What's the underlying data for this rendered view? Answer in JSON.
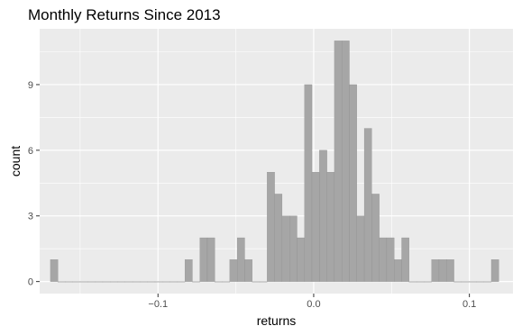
{
  "chart_data": {
    "type": "bar",
    "title": "Monthly Returns Since 2013",
    "xlabel": "returns",
    "ylabel": "count",
    "xlim": [
      -0.176,
      0.128
    ],
    "ylim": [
      -0.55,
      11.55
    ],
    "x_ticks": [
      {
        "value": -0.1,
        "label": "−0.1"
      },
      {
        "value": 0.0,
        "label": "0.0"
      },
      {
        "value": 0.1,
        "label": "0.1"
      }
    ],
    "y_ticks": [
      {
        "value": 0,
        "label": "0"
      },
      {
        "value": 3,
        "label": "3"
      },
      {
        "value": 6,
        "label": "6"
      },
      {
        "value": 9,
        "label": "9"
      }
    ],
    "bin_width": 0.0048,
    "bins": [
      {
        "x": -0.1667,
        "count": 1
      },
      {
        "x": -0.1619,
        "count": 0
      },
      {
        "x": -0.1571,
        "count": 0
      },
      {
        "x": -0.1523,
        "count": 0
      },
      {
        "x": -0.1475,
        "count": 0
      },
      {
        "x": -0.1427,
        "count": 0
      },
      {
        "x": -0.1379,
        "count": 0
      },
      {
        "x": -0.1331,
        "count": 0
      },
      {
        "x": -0.1283,
        "count": 0
      },
      {
        "x": -0.1235,
        "count": 0
      },
      {
        "x": -0.1187,
        "count": 0
      },
      {
        "x": -0.1139,
        "count": 0
      },
      {
        "x": -0.1091,
        "count": 0
      },
      {
        "x": -0.1043,
        "count": 0
      },
      {
        "x": -0.0995,
        "count": 0
      },
      {
        "x": -0.0947,
        "count": 0
      },
      {
        "x": -0.0899,
        "count": 0
      },
      {
        "x": -0.0851,
        "count": 0
      },
      {
        "x": -0.0803,
        "count": 1
      },
      {
        "x": -0.0755,
        "count": 0
      },
      {
        "x": -0.0707,
        "count": 2
      },
      {
        "x": -0.0659,
        "count": 2
      },
      {
        "x": -0.0611,
        "count": 0
      },
      {
        "x": -0.0563,
        "count": 0
      },
      {
        "x": -0.0515,
        "count": 1
      },
      {
        "x": -0.0467,
        "count": 2
      },
      {
        "x": -0.0419,
        "count": 1
      },
      {
        "x": -0.0371,
        "count": 0
      },
      {
        "x": -0.0323,
        "count": 0
      },
      {
        "x": -0.0275,
        "count": 5
      },
      {
        "x": -0.0227,
        "count": 4
      },
      {
        "x": -0.0179,
        "count": 3
      },
      {
        "x": -0.0131,
        "count": 3
      },
      {
        "x": -0.0083,
        "count": 2
      },
      {
        "x": -0.0035,
        "count": 9
      },
      {
        "x": 0.0013,
        "count": 5
      },
      {
        "x": 0.0061,
        "count": 6
      },
      {
        "x": 0.0109,
        "count": 5
      },
      {
        "x": 0.0157,
        "count": 11
      },
      {
        "x": 0.0205,
        "count": 11
      },
      {
        "x": 0.0253,
        "count": 9
      },
      {
        "x": 0.0301,
        "count": 3
      },
      {
        "x": 0.0349,
        "count": 7
      },
      {
        "x": 0.0397,
        "count": 4
      },
      {
        "x": 0.0445,
        "count": 2
      },
      {
        "x": 0.0493,
        "count": 2
      },
      {
        "x": 0.0541,
        "count": 1
      },
      {
        "x": 0.0589,
        "count": 2
      },
      {
        "x": 0.0637,
        "count": 0
      },
      {
        "x": 0.0685,
        "count": 0
      },
      {
        "x": 0.0733,
        "count": 0
      },
      {
        "x": 0.0781,
        "count": 1
      },
      {
        "x": 0.0829,
        "count": 1
      },
      {
        "x": 0.0877,
        "count": 1
      },
      {
        "x": 0.0925,
        "count": 0
      },
      {
        "x": 0.0973,
        "count": 0
      },
      {
        "x": 0.1021,
        "count": 0
      },
      {
        "x": 0.1069,
        "count": 0
      },
      {
        "x": 0.1117,
        "count": 0
      },
      {
        "x": 0.1165,
        "count": 1
      }
    ],
    "grid": true,
    "bar_color": "#a6a6a6",
    "bar_outline_color": "#8c8c8c",
    "panel_color": "#ebebeb",
    "gridline_color": "#ffffff"
  }
}
